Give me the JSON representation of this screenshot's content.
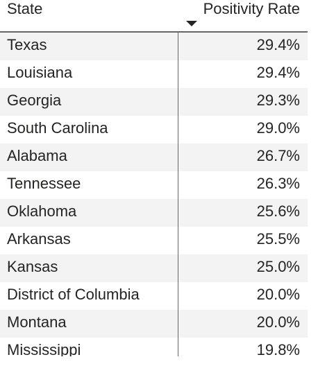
{
  "table": {
    "columns": [
      "State",
      "Positivity Rate"
    ],
    "rows": [
      [
        "Texas",
        "29.4%"
      ],
      [
        "Louisiana",
        "29.4%"
      ],
      [
        "Georgia",
        "29.3%"
      ],
      [
        "South Carolina",
        "29.0%"
      ],
      [
        "Alabama",
        "26.7%"
      ],
      [
        "Tennessee",
        "26.3%"
      ],
      [
        "Oklahoma",
        "25.6%"
      ],
      [
        "Arkansas",
        "25.5%"
      ],
      [
        "Kansas",
        "25.0%"
      ],
      [
        "District of Columbia",
        "20.0%"
      ],
      [
        "Montana",
        "20.0%"
      ],
      [
        "Mississippi",
        "19.8%"
      ]
    ]
  }
}
